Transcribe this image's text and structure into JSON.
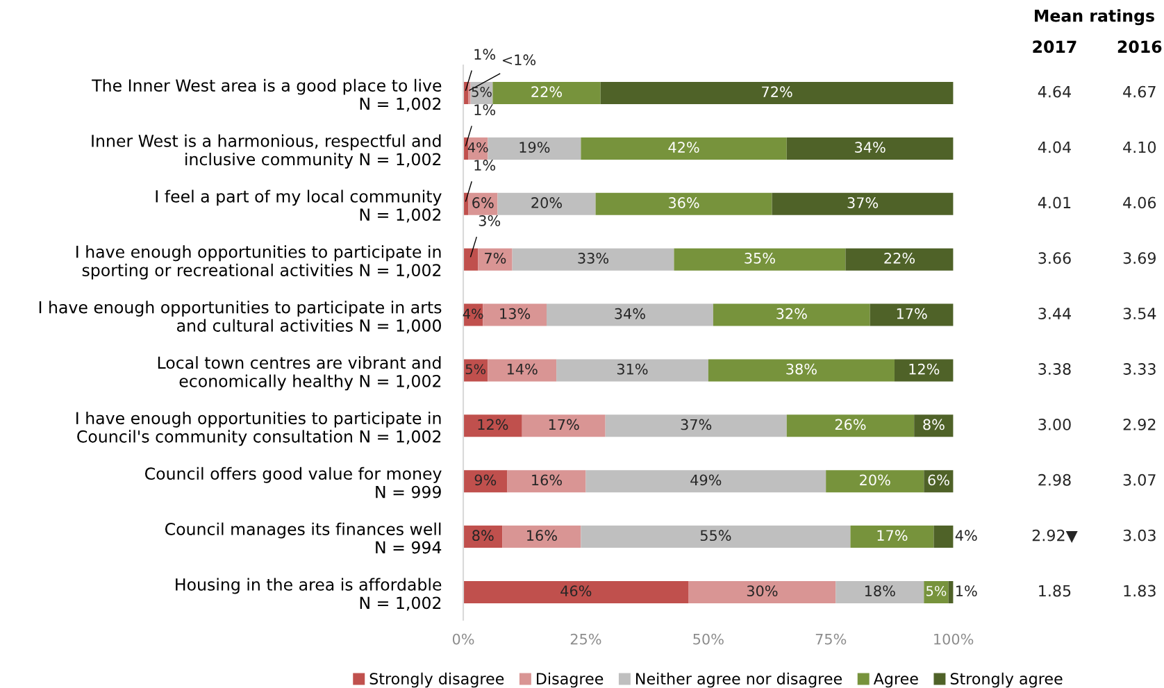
{
  "chart_data": {
    "type": "bar",
    "orientation": "horizontal",
    "stacked": true,
    "categories": [
      "The Inner West area is a good place to live\nN = 1,002",
      "Inner West is a harmonious, respectful and\ninclusive community N = 1,002",
      "I feel a part of my local community\nN = 1,002",
      "I have enough opportunities to participate in\nsporting or recreational activities N = 1,002",
      "I have enough opportunities to participate in arts\nand cultural activities N = 1,000",
      "Local town centres are vibrant and\neconomically healthy N = 1,002",
      "I have enough opportunities to participate in\nCouncil's community consultation N = 1,002",
      "Council offers good value for money\nN = 999",
      "Council manages its finances well\nN = 994",
      "Housing in the area is affordable\nN = 1,002"
    ],
    "series": [
      {
        "name": "Strongly disagree",
        "color": "#c0504d",
        "values": [
          1,
          1,
          1,
          3,
          4,
          5,
          12,
          9,
          8,
          46
        ],
        "value_labels": [
          "1%",
          "1%",
          "1%",
          "3%",
          "4%",
          "5%",
          "12%",
          "9%",
          "8%",
          "46%"
        ]
      },
      {
        "name": "Disagree",
        "color": "#d99594",
        "values": [
          0.5,
          4,
          6,
          7,
          13,
          14,
          17,
          16,
          16,
          30
        ],
        "value_labels": [
          "<1%",
          "4%",
          "6%",
          "7%",
          "13%",
          "14%",
          "17%",
          "16%",
          "16%",
          "30%"
        ]
      },
      {
        "name": "Neither agree nor disagree",
        "color": "#bfbfbf",
        "values": [
          4.5,
          19,
          20,
          33,
          34,
          31,
          37,
          49,
          55,
          18
        ],
        "value_labels": [
          "5%",
          "19%",
          "20%",
          "33%",
          "34%",
          "31%",
          "37%",
          "49%",
          "55%",
          "18%"
        ]
      },
      {
        "name": "Agree",
        "color": "#77933c",
        "values": [
          22,
          42,
          36,
          35,
          32,
          38,
          26,
          20,
          17,
          5
        ],
        "value_labels": [
          "22%",
          "42%",
          "36%",
          "35%",
          "32%",
          "38%",
          "26%",
          "20%",
          "17%",
          "5%"
        ]
      },
      {
        "name": "Strongly agree",
        "color": "#4f6228",
        "values": [
          72,
          34,
          37,
          22,
          17,
          12,
          8,
          6,
          4,
          1
        ],
        "value_labels": [
          "72%",
          "34%",
          "37%",
          "22%",
          "17%",
          "12%",
          "8%",
          "6%",
          "4%",
          "1%"
        ]
      }
    ],
    "xlim": [
      0,
      100
    ],
    "xticks": [
      {
        "value": 0,
        "label": "0%"
      },
      {
        "value": 25,
        "label": "25%"
      },
      {
        "value": 50,
        "label": "50%"
      },
      {
        "value": 75,
        "label": "75%"
      },
      {
        "value": 100,
        "label": "100%"
      }
    ],
    "legend": "bottom",
    "grid": false,
    "annotations": [
      "Mean ratings",
      "2017",
      "2016",
      "4.64",
      "4.67",
      "4.04",
      "4.10",
      "4.01",
      "4.06",
      "3.66",
      "3.69",
      "3.44",
      "3.54",
      "3.38",
      "3.33",
      "3.00",
      "2.92",
      "2.98",
      "3.07",
      "2.92▼",
      "3.03",
      "1.85",
      "1.83"
    ]
  }
}
